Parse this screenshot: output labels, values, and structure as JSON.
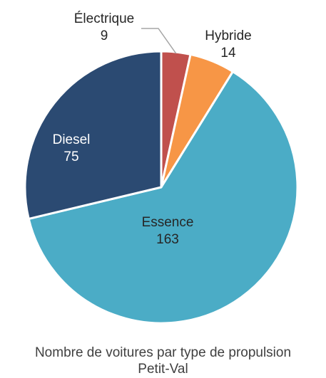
{
  "chart_data": {
    "type": "pie",
    "categories": [
      "Électrique",
      "Hybride",
      "Essence",
      "Diesel"
    ],
    "values": [
      9,
      14,
      163,
      75
    ],
    "colors": [
      "#c0504d",
      "#f79646",
      "#4bacc6",
      "#2b4a72"
    ],
    "title": "Nombre de voitures par type de propulsion",
    "subtitle": "Petit-Val",
    "start_angle_deg": 0,
    "direction": "clockwise",
    "label_colors": [
      "#262626",
      "#262626",
      "#262626",
      "#ffffff"
    ]
  }
}
